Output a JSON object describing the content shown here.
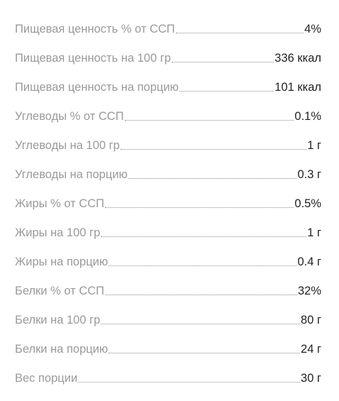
{
  "nutrition": {
    "rows": [
      {
        "label": "Пищевая ценность % от ССП",
        "value": "4%"
      },
      {
        "label": "Пищевая ценность на 100 гр",
        "value": "336 ккал"
      },
      {
        "label": "Пищевая ценность на порцию",
        "value": "101 ккал"
      },
      {
        "label": "Углеводы % от ССП",
        "value": "0.1%"
      },
      {
        "label": "Углеводы на 100 гр",
        "value": "1 г"
      },
      {
        "label": "Углеводы на порцию",
        "value": "0.3 г"
      },
      {
        "label": "Жиры % от ССП",
        "value": "0.5%"
      },
      {
        "label": "Жиры на 100 гр",
        "value": "1 г"
      },
      {
        "label": "Жиры на порцию",
        "value": "0.4 г"
      },
      {
        "label": "Белки % от ССП",
        "value": "32%"
      },
      {
        "label": "Белки на 100 гр",
        "value": "80 г"
      },
      {
        "label": "Белки на порцию",
        "value": "24 г"
      },
      {
        "label": "Вес порции",
        "value": "30 г"
      }
    ]
  }
}
